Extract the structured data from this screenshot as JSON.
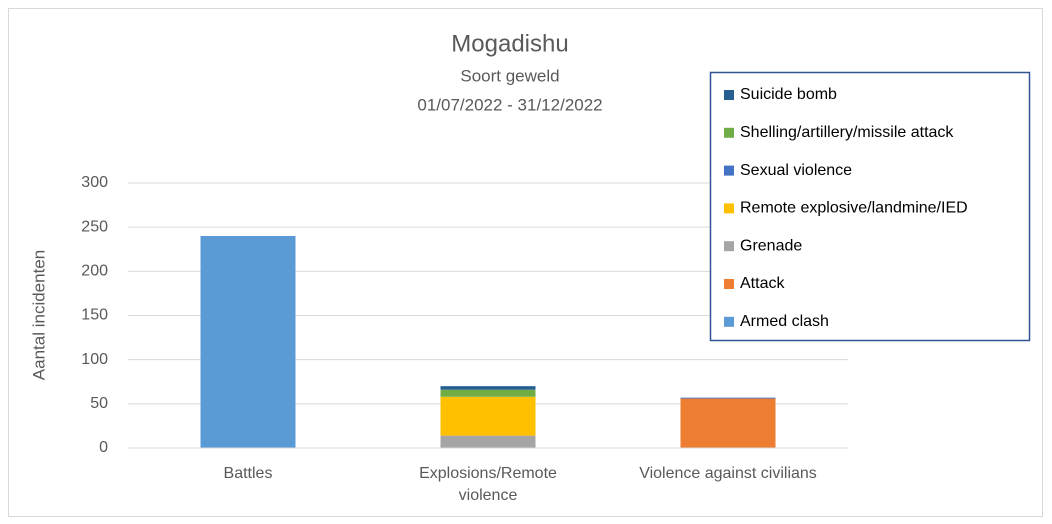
{
  "chart_data": {
    "type": "stacked_bar",
    "title": "Mogadishu",
    "subtitle": "Soort geweld",
    "date_range": "01/07/2022 - 31/12/2022",
    "y_label": "Aantal incidenten",
    "categories": [
      "Battles",
      "Explosions/Remote violence",
      "Violence against civilians"
    ],
    "series": [
      {
        "name": "Armed clash",
        "color": "#5b9bd5",
        "values": [
          240,
          0,
          0
        ]
      },
      {
        "name": "Attack",
        "color": "#ed7d31",
        "values": [
          0,
          0,
          56
        ]
      },
      {
        "name": "Grenade",
        "color": "#a5a5a5",
        "values": [
          0,
          14,
          0
        ]
      },
      {
        "name": "Remote explosive/landmine/IED",
        "color": "#ffc000",
        "values": [
          0,
          44,
          0
        ]
      },
      {
        "name": "Sexual violence",
        "color": "#4472c4",
        "values": [
          0,
          0,
          1
        ]
      },
      {
        "name": "Shelling/artillery/missile attack",
        "color": "#70ad47",
        "values": [
          0,
          8,
          0
        ]
      },
      {
        "name": "Suicide bomb",
        "color": "#255e91",
        "values": [
          0,
          4,
          0
        ]
      }
    ],
    "ylim": [
      0,
      300
    ],
    "yticks": [
      0,
      50,
      100,
      150,
      200,
      250,
      300
    ],
    "grid": true,
    "legend": "upper right"
  }
}
